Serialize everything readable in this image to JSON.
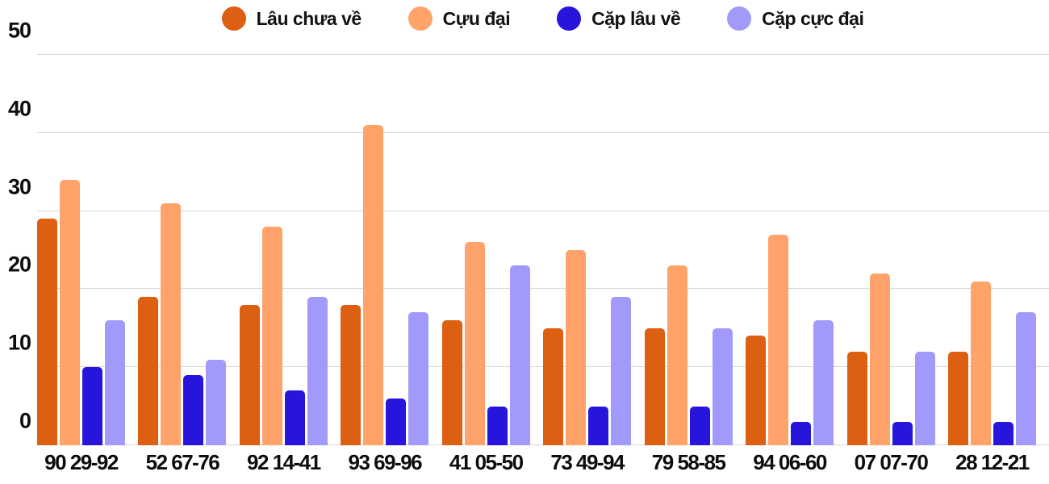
{
  "chart_data": {
    "type": "bar",
    "title": "",
    "xlabel": "",
    "ylabel": "",
    "categories": [
      "90 29-92",
      "52 67-76",
      "92 14-41",
      "93 69-96",
      "41 05-50",
      "73 49-94",
      "79 58-85",
      "94 06-60",
      "07 07-70",
      "28 12-21"
    ],
    "series": [
      {
        "name": "Lâu chưa về",
        "color": "#DD5F12",
        "values": [
          29,
          19,
          18,
          18,
          16,
          15,
          15,
          14,
          12,
          12
        ]
      },
      {
        "name": "Cựu đại",
        "color": "#FFA36B",
        "values": [
          34,
          31,
          28,
          41,
          26,
          25,
          23,
          27,
          22,
          21
        ]
      },
      {
        "name": "Cặp lâu về",
        "color": "#2815DC",
        "values": [
          10,
          9,
          7,
          6,
          5,
          5,
          5,
          3,
          3,
          3
        ]
      },
      {
        "name": "Cặp cực đại",
        "color": "#A29AFA",
        "values": [
          16,
          11,
          19,
          17,
          23,
          19,
          15,
          16,
          12,
          17
        ]
      }
    ],
    "ylim": [
      0,
      50
    ],
    "yticks": [
      0,
      10,
      20,
      30,
      40,
      50
    ],
    "grid": true,
    "legend_position": "top",
    "colors": {
      "gridline": "#d6d6d6",
      "text": "#0d0d0d",
      "background": "#ffffff"
    }
  }
}
